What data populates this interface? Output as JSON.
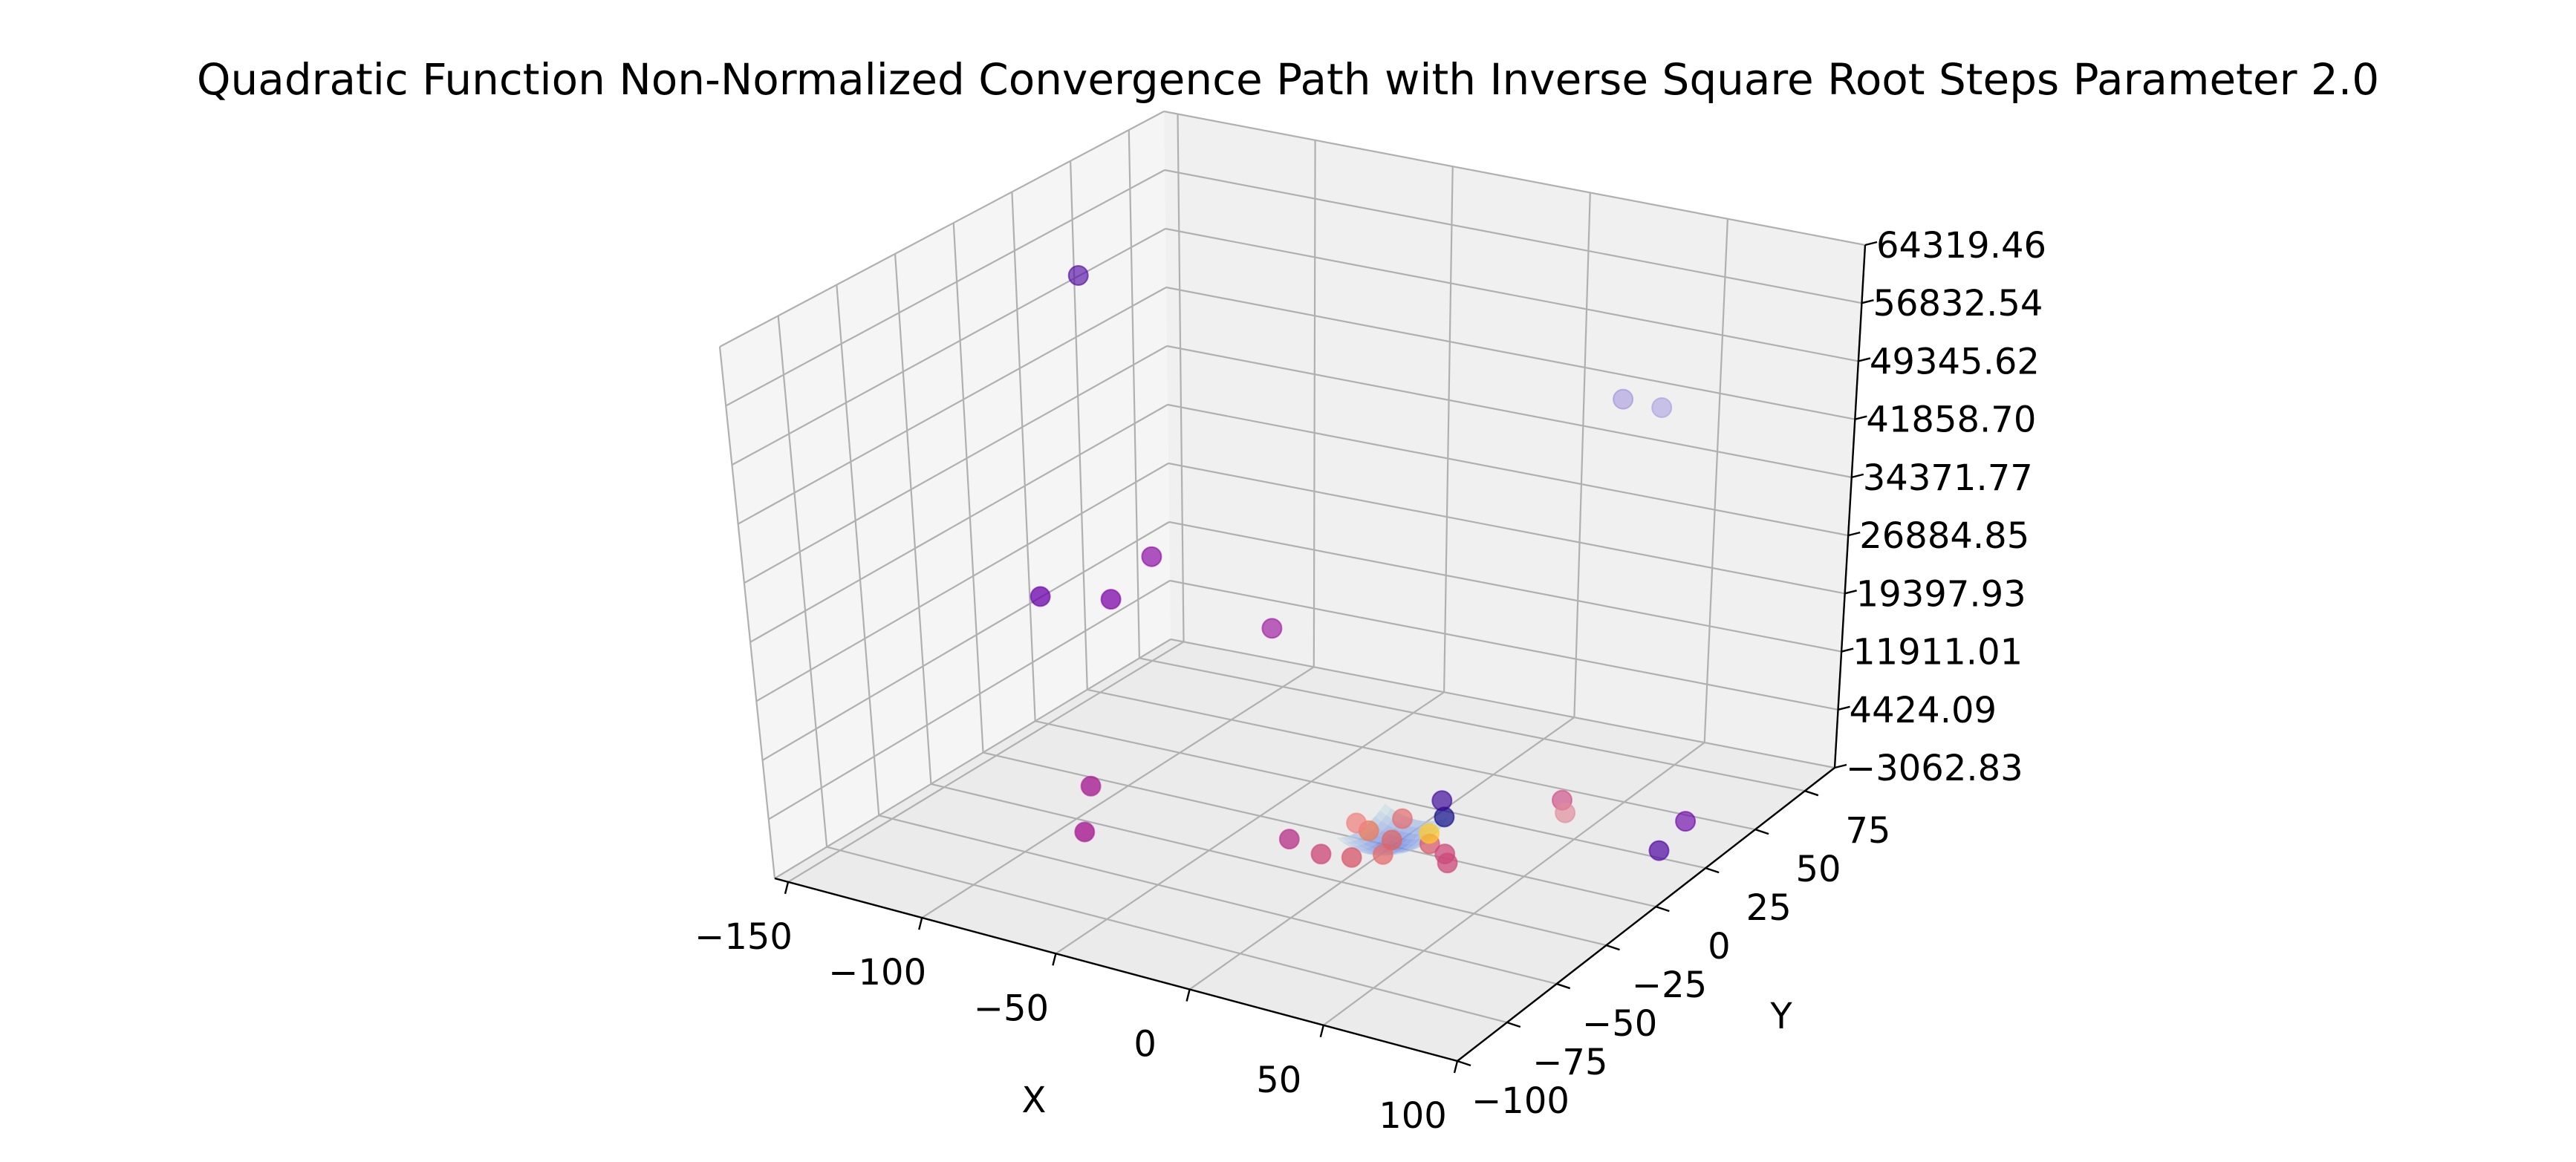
{
  "chart_data": {
    "type": "scatter",
    "title": "Quadratic Function Non-Normalized Convergence Path with Inverse Square Root Steps Parameter 2.0",
    "xlabel": "X",
    "ylabel": "Y",
    "zlabel": "",
    "x_ticks": [
      "−150",
      "−100",
      "−50",
      "0",
      "50",
      "100"
    ],
    "y_ticks": [
      "−100",
      "−75",
      "−50",
      "−25",
      "0",
      "25",
      "50",
      "75"
    ],
    "z_ticks": [
      "−3062.83",
      "4424.09",
      "11911.01",
      "19397.93",
      "26884.85",
      "34371.77",
      "41858.70",
      "49345.62",
      "56832.54",
      "64319.46"
    ],
    "xlim": [
      -155,
      100
    ],
    "ylim": [
      -100,
      90
    ],
    "zlim": [
      -3062.83,
      64319.46
    ],
    "grid": true,
    "colormap": "plasma",
    "surface": "quadratic bowl near origin",
    "points": [
      {
        "x": -145,
        "y": 40,
        "z": 52000,
        "color": "#4c02a1"
      },
      {
        "x": -118,
        "y": -15,
        "z": 22000,
        "color": "#6a00a8"
      },
      {
        "x": -96,
        "y": -10,
        "z": 22500,
        "color": "#7e03a8"
      },
      {
        "x": -95,
        "y": 8,
        "z": 25000,
        "color": "#8b0aa5"
      },
      {
        "x": -62,
        "y": 22,
        "z": 16000,
        "color": "#9c179e"
      },
      {
        "x": -82,
        "y": -40,
        "z": 5000,
        "color": "#a92395"
      },
      {
        "x": -73,
        "y": -55,
        "z": 2500,
        "color": "#a92395"
      },
      {
        "x": 22,
        "y": 80,
        "z": 41000,
        "color": "#9c8cd8"
      },
      {
        "x": 40,
        "y": 75,
        "z": 42000,
        "color": "#a79ae0"
      },
      {
        "x": 45,
        "y": 25,
        "z": 1500,
        "color": "#d04a86"
      },
      {
        "x": 50,
        "y": 20,
        "z": 1200,
        "color": "#e08a9a"
      },
      {
        "x": 88,
        "y": 30,
        "z": 1000,
        "color": "#6a00a8"
      },
      {
        "x": 93,
        "y": 10,
        "z": 1500,
        "color": "#4c02a1"
      },
      {
        "x": -5,
        "y": -5,
        "z": -600,
        "color": "#ed7953"
      },
      {
        "x": -12,
        "y": -2,
        "z": -700,
        "color": "#f08080"
      },
      {
        "x": 0,
        "y": 5,
        "z": -500,
        "color": "#e66c6c"
      },
      {
        "x": 12,
        "y": 10,
        "z": -300,
        "color": "#0d0887"
      },
      {
        "x": 18,
        "y": -5,
        "z": -500,
        "color": "#d8576b"
      },
      {
        "x": 26,
        "y": -8,
        "z": -600,
        "color": "#cc4778"
      },
      {
        "x": 30,
        "y": -12,
        "z": -700,
        "color": "#cc4778"
      },
      {
        "x": 8,
        "y": -15,
        "z": -800,
        "color": "#e66c6c"
      },
      {
        "x": 0,
        "y": -20,
        "z": -900,
        "color": "#d8576b"
      },
      {
        "x": -10,
        "y": -22,
        "z": -900,
        "color": "#cc4778"
      },
      {
        "x": -25,
        "y": -18,
        "z": -900,
        "color": "#b83289"
      },
      {
        "x": 5,
        "y": 18,
        "z": -200,
        "color": "#3b049a"
      },
      {
        "x": 6,
        "y": -8,
        "z": -400,
        "color": "#e16462"
      },
      {
        "x": 14,
        "y": 0,
        "z": -400,
        "color": "#fdca26"
      }
    ]
  }
}
